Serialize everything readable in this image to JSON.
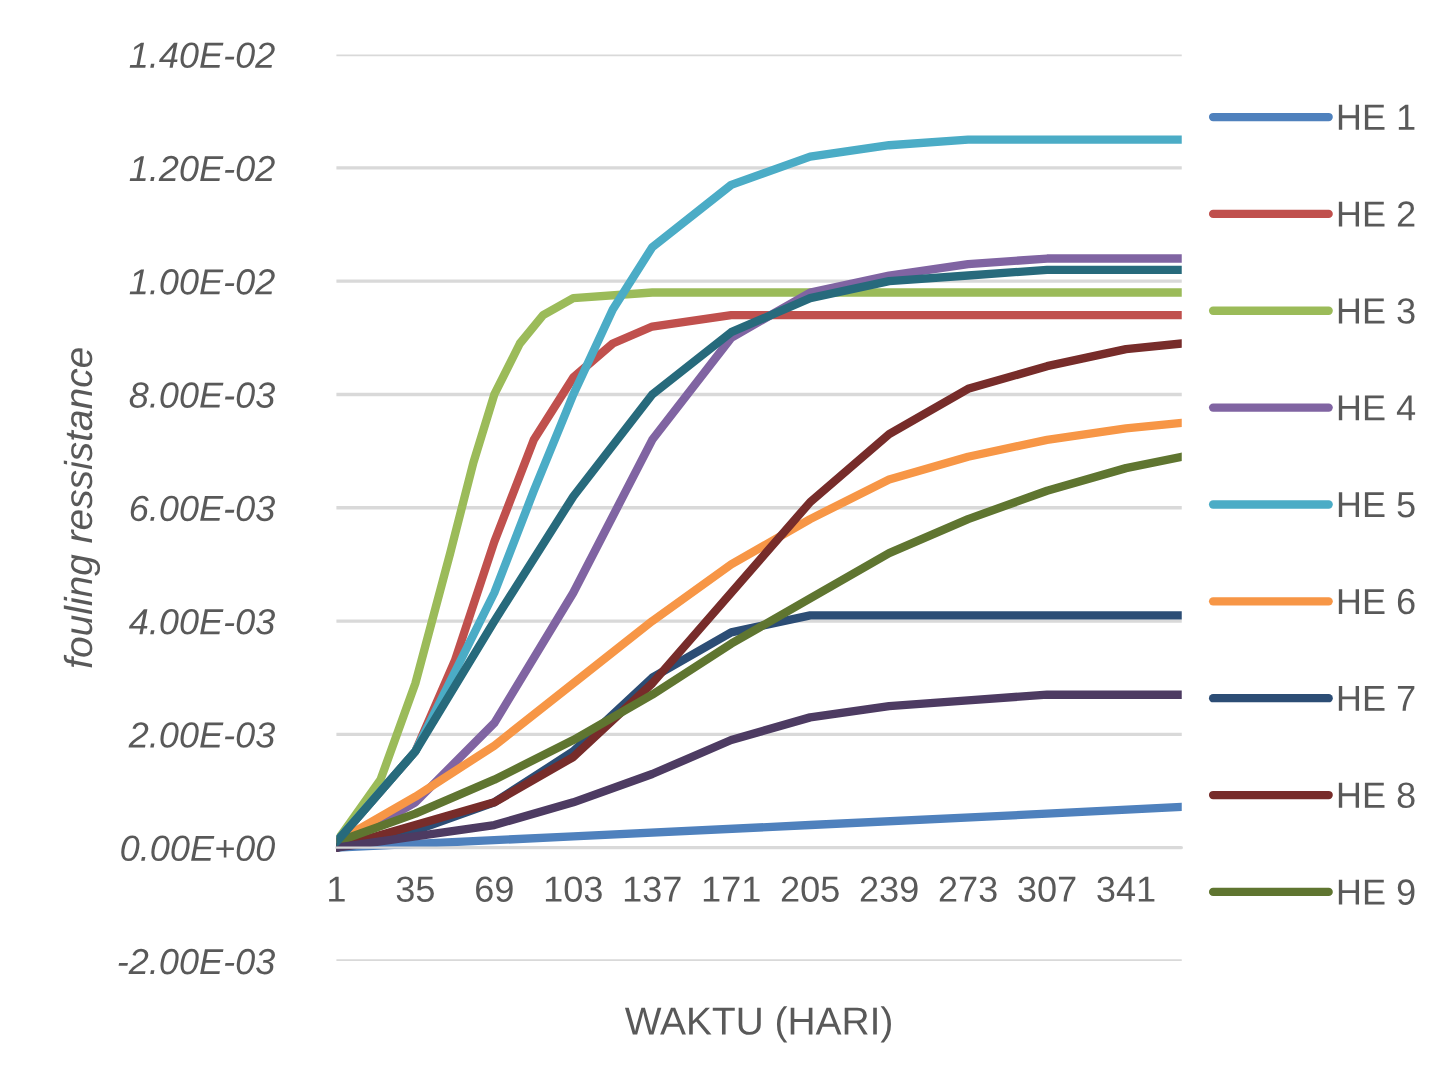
{
  "chart_data": {
    "type": "line",
    "xlabel": "WAKTU (HARI)",
    "ylabel": "fouling ressistance",
    "xlim": [
      1,
      365
    ],
    "xticks": [
      1,
      35,
      69,
      103,
      137,
      171,
      205,
      239,
      273,
      307,
      341
    ],
    "ylim": [
      -0.002,
      0.014
    ],
    "yticks": [
      {
        "value": -0.002,
        "label": "-2.00E-03"
      },
      {
        "value": 0,
        "label": "0.00E+00"
      },
      {
        "value": 0.002,
        "label": "2.00E-03"
      },
      {
        "value": 0.004,
        "label": "4.00E-03"
      },
      {
        "value": 0.006,
        "label": "6.00E-03"
      },
      {
        "value": 0.008,
        "label": "8.00E-03"
      },
      {
        "value": 0.01,
        "label": "1.00E-02"
      },
      {
        "value": 0.012,
        "label": "1.20E-02"
      },
      {
        "value": 0.014,
        "label": "1.40E-02"
      }
    ],
    "grid": "y",
    "legend": "right",
    "marker": "none",
    "line_style": "solid",
    "series": [
      {
        "name": "HE 1",
        "color": "#4f81bd",
        "x": [
          1,
          103,
          205,
          307,
          365
        ],
        "values": [
          0,
          0.0002,
          0.0004,
          0.0006,
          0.00072
        ]
      },
      {
        "name": "HE 2",
        "color": "#c0504d",
        "x": [
          1,
          35,
          52,
          69,
          86,
          103,
          120,
          137,
          171,
          365
        ],
        "values": [
          0.0001,
          0.0017,
          0.0033,
          0.0054,
          0.0072,
          0.0083,
          0.0089,
          0.0092,
          0.0094,
          0.0094
        ]
      },
      {
        "name": "HE 3",
        "color": "#9bbb59",
        "x": [
          1,
          20,
          35,
          50,
          60,
          69,
          80,
          90,
          103,
          137,
          200,
          365
        ],
        "values": [
          0.0001,
          0.0012,
          0.0029,
          0.0052,
          0.0068,
          0.008,
          0.0089,
          0.0094,
          0.0097,
          0.0098,
          0.0098,
          0.0098
        ]
      },
      {
        "name": "HE 4",
        "color": "#8064a2",
        "x": [
          1,
          35,
          69,
          103,
          137,
          171,
          205,
          239,
          273,
          307,
          365
        ],
        "values": [
          0,
          0.0008,
          0.0022,
          0.0045,
          0.0072,
          0.009,
          0.0098,
          0.0101,
          0.0103,
          0.0104,
          0.0104
        ]
      },
      {
        "name": "HE 5",
        "color": "#4bacc6",
        "x": [
          1,
          35,
          69,
          86,
          103,
          120,
          137,
          171,
          205,
          239,
          273,
          365
        ],
        "values": [
          0.0001,
          0.0017,
          0.0045,
          0.0063,
          0.008,
          0.0095,
          0.0106,
          0.0117,
          0.0122,
          0.0124,
          0.0125,
          0.0125
        ]
      },
      {
        "name": "HE 6",
        "color": "#f79646",
        "x": [
          1,
          35,
          69,
          103,
          137,
          171,
          205,
          239,
          273,
          307,
          341,
          365
        ],
        "values": [
          0.0001,
          0.0009,
          0.0018,
          0.0029,
          0.004,
          0.005,
          0.0058,
          0.0065,
          0.0069,
          0.0072,
          0.0074,
          0.0075
        ]
      },
      {
        "name": "HE 7",
        "color": "#2c4d75",
        "x": [
          1,
          35,
          69,
          103,
          137,
          171,
          205,
          365
        ],
        "values": [
          0,
          0.0003,
          0.0008,
          0.0017,
          0.003,
          0.0038,
          0.0041,
          0.0041
        ]
      },
      {
        "name": "HE 8",
        "color": "#772c2a",
        "x": [
          1,
          35,
          69,
          103,
          137,
          171,
          205,
          239,
          273,
          307,
          341,
          365
        ],
        "values": [
          0,
          0.0004,
          0.0008,
          0.0016,
          0.0029,
          0.0045,
          0.0061,
          0.0073,
          0.0081,
          0.0085,
          0.0088,
          0.0089
        ]
      },
      {
        "name": "HE 9",
        "color": "#5f7530",
        "x": [
          1,
          35,
          69,
          103,
          137,
          171,
          205,
          239,
          273,
          307,
          341,
          365
        ],
        "values": [
          0.0001,
          0.0006,
          0.0012,
          0.0019,
          0.0027,
          0.0036,
          0.0044,
          0.0052,
          0.0058,
          0.0063,
          0.0067,
          0.0069
        ]
      },
      {
        "color": "#4d3b62",
        "x": [
          1,
          35,
          69,
          103,
          137,
          171,
          205,
          239,
          273,
          307,
          365
        ],
        "values": [
          0,
          0.0002,
          0.0004,
          0.0008,
          0.0013,
          0.0019,
          0.0023,
          0.0025,
          0.0026,
          0.0027,
          0.0027
        ]
      },
      {
        "color": "#276a7c",
        "x": [
          1,
          35,
          69,
          103,
          137,
          171,
          205,
          239,
          273,
          307,
          365
        ],
        "values": [
          0.0001,
          0.0017,
          0.004,
          0.0062,
          0.008,
          0.0091,
          0.0097,
          0.01,
          0.0101,
          0.0102,
          0.0102
        ]
      }
    ]
  }
}
